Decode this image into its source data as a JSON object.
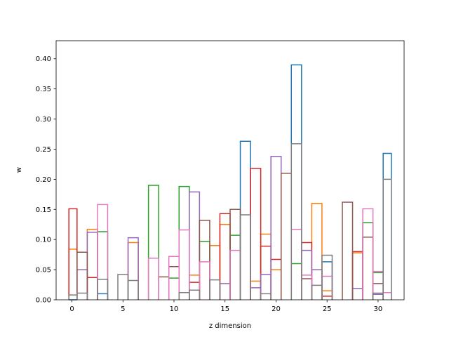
{
  "chart_data": {
    "type": "bar",
    "style": "step-histogram",
    "xlabel": "z dimension",
    "ylabel": "w",
    "xlim": [
      -1.55,
      32.55
    ],
    "ylim": [
      0,
      0.43
    ],
    "xticks": [
      0,
      5,
      10,
      15,
      20,
      25,
      30
    ],
    "yticks": [
      0.0,
      0.05,
      0.1,
      0.15,
      0.2,
      0.25,
      0.3,
      0.35,
      0.4
    ],
    "grid": false,
    "legend": "none",
    "series": [
      {
        "color": "#1f77b4",
        "bins": [
          [
            -0.3,
            0.5,
            0
          ],
          [
            2.5,
            3.5,
            0.01
          ],
          [
            16.5,
            17.5,
            0.263
          ],
          [
            21.5,
            22.5,
            0.39
          ],
          [
            24.5,
            25.5,
            0.063
          ],
          [
            30.5,
            31.3,
            0.243
          ]
        ]
      },
      {
        "color": "#ff7f0e",
        "bins": [
          [
            -0.3,
            0.5,
            0.084
          ],
          [
            1.5,
            2.5,
            0.117
          ],
          [
            5.5,
            6.5,
            0.095
          ],
          [
            11.5,
            12.5,
            0.041
          ],
          [
            13.5,
            14.5,
            0.09
          ],
          [
            14.5,
            15.5,
            0.125
          ],
          [
            17.5,
            18.5,
            0.031
          ],
          [
            18.5,
            19.5,
            0.109
          ],
          [
            19.5,
            20.5,
            0.05
          ],
          [
            23.5,
            24.5,
            0.16
          ],
          [
            24.5,
            25.5,
            0.015
          ],
          [
            27.5,
            28.5,
            0.078
          ]
        ]
      },
      {
        "color": "#2ca02c",
        "bins": [
          [
            2.5,
            3.5,
            0.113
          ],
          [
            7.5,
            8.5,
            0.19
          ],
          [
            9.5,
            10.5,
            0.036
          ],
          [
            10.5,
            11.5,
            0.188
          ],
          [
            12.5,
            13.5,
            0.097
          ],
          [
            15.5,
            16.5,
            0.107
          ],
          [
            21.5,
            22.5,
            0.06
          ],
          [
            28.5,
            29.5,
            0.128
          ],
          [
            29.5,
            30.5,
            0.045
          ]
        ]
      },
      {
        "color": "#d62728",
        "bins": [
          [
            -0.3,
            0.5,
            0.151
          ],
          [
            1.5,
            2.5,
            0.037
          ],
          [
            11.5,
            12.5,
            0.029
          ],
          [
            14.5,
            15.5,
            0.143
          ],
          [
            17.5,
            18.5,
            0.218
          ],
          [
            18.5,
            19.5,
            0.089
          ],
          [
            19.5,
            20.5,
            0.067
          ],
          [
            22.5,
            23.5,
            0.095
          ],
          [
            27.5,
            28.5,
            0.08
          ],
          [
            24.5,
            25.5,
            0.006
          ]
        ]
      },
      {
        "color": "#9467bd",
        "bins": [
          [
            0.5,
            1.5,
            0.05
          ],
          [
            1.5,
            2.5,
            0.112
          ],
          [
            5.5,
            6.5,
            0.103
          ],
          [
            11.5,
            12.5,
            0.179
          ],
          [
            14.5,
            15.5,
            0.027
          ],
          [
            17.5,
            18.5,
            0.02
          ],
          [
            18.5,
            19.5,
            0.042
          ],
          [
            19.5,
            20.5,
            0.238
          ],
          [
            22.5,
            23.5,
            0.082
          ],
          [
            23.5,
            24.5,
            0.05
          ],
          [
            27.5,
            28.5,
            0.019
          ],
          [
            29.5,
            30.5,
            0.009
          ]
        ]
      },
      {
        "color": "#8c564b",
        "bins": [
          [
            0.5,
            1.5,
            0.079
          ],
          [
            8.5,
            9.5,
            0.038
          ],
          [
            9.5,
            10.5,
            0.055
          ],
          [
            12.5,
            13.5,
            0.132
          ],
          [
            15.5,
            16.5,
            0.15
          ],
          [
            20.5,
            21.5,
            0.21
          ],
          [
            22.5,
            23.5,
            0.035
          ],
          [
            26.5,
            27.5,
            0.162
          ],
          [
            28.5,
            29.5,
            0.104
          ],
          [
            29.5,
            30.5,
            0.027
          ]
        ]
      },
      {
        "color": "#e377c2",
        "bins": [
          [
            2.5,
            3.5,
            0.158
          ],
          [
            7.5,
            8.5,
            0.069
          ],
          [
            9.5,
            10.5,
            0.072
          ],
          [
            10.5,
            11.5,
            0.116
          ],
          [
            12.5,
            13.5,
            0.063
          ],
          [
            15.5,
            16.5,
            0.082
          ],
          [
            21.5,
            22.5,
            0.117
          ],
          [
            22.5,
            23.5,
            0.041
          ],
          [
            24.5,
            25.5,
            0.039
          ],
          [
            28.5,
            29.5,
            0.151
          ],
          [
            29.5,
            30.5,
            0.047
          ],
          [
            30.5,
            31.3,
            0.012
          ]
        ]
      },
      {
        "color": "#7f7f7f",
        "bins": [
          [
            -0.3,
            0.5,
            0.008
          ],
          [
            0.5,
            1.5,
            0.011
          ],
          [
            2.5,
            3.5,
            0.034
          ],
          [
            4.5,
            5.5,
            0.042
          ],
          [
            5.5,
            6.5,
            0.032
          ],
          [
            10.5,
            11.5,
            0.012
          ],
          [
            11.5,
            12.5,
            0.016
          ],
          [
            13.5,
            14.5,
            0.033
          ],
          [
            16.5,
            17.5,
            0.141
          ],
          [
            18.5,
            19.5,
            0.01
          ],
          [
            21.5,
            22.5,
            0.259
          ],
          [
            23.5,
            24.5,
            0.024
          ],
          [
            24.5,
            25.5,
            0.074
          ],
          [
            29.5,
            30.5,
            0.011
          ],
          [
            30.5,
            31.3,
            0.2
          ]
        ]
      }
    ]
  }
}
